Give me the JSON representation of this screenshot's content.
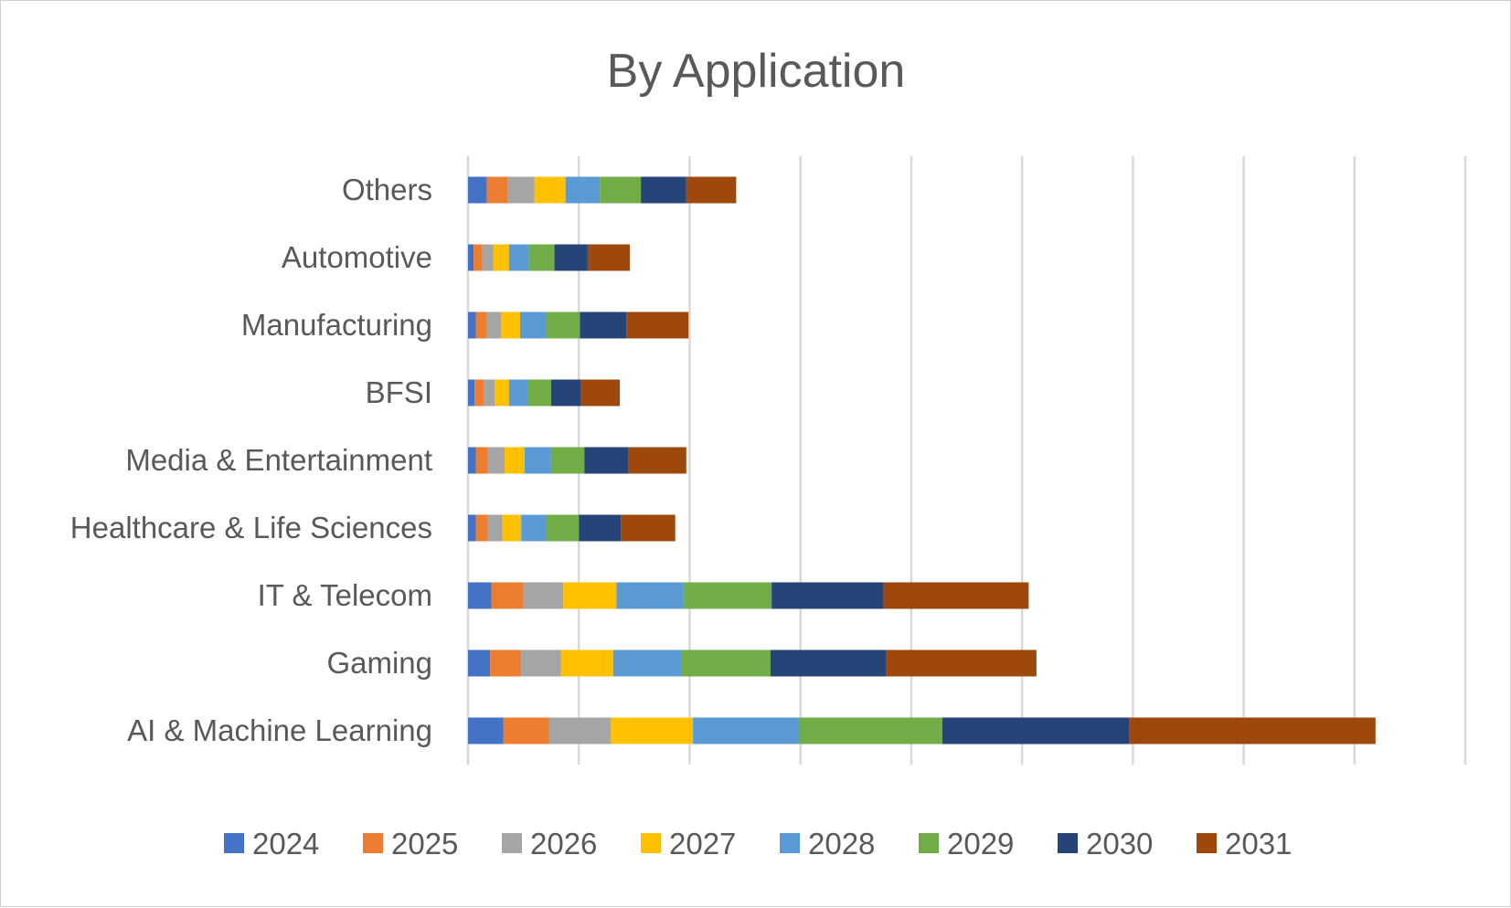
{
  "chart_data": {
    "type": "bar",
    "orientation": "horizontal",
    "stacked": true,
    "title": "By Application",
    "xlabel": "",
    "ylabel": "",
    "categories": [
      "AI & Machine Learning",
      "Gaming",
      "IT & Telecom",
      "Healthcare & Life Sciences",
      "Media & Entertainment",
      "BFSI",
      "Manufacturing",
      "Automotive",
      "Others"
    ],
    "series": [
      {
        "name": "2024",
        "color": "#4472C4",
        "values": [
          0.32,
          0.2,
          0.21,
          0.07,
          0.07,
          0.06,
          0.07,
          0.05,
          0.17
        ]
      },
      {
        "name": "2025",
        "color": "#ED7D31",
        "values": [
          0.41,
          0.28,
          0.29,
          0.11,
          0.11,
          0.08,
          0.1,
          0.08,
          0.19
        ]
      },
      {
        "name": "2026",
        "color": "#A5A5A5",
        "values": [
          0.56,
          0.36,
          0.36,
          0.13,
          0.15,
          0.1,
          0.13,
          0.1,
          0.24
        ]
      },
      {
        "name": "2027",
        "color": "#FFC000",
        "values": [
          0.74,
          0.47,
          0.48,
          0.17,
          0.18,
          0.13,
          0.17,
          0.14,
          0.28
        ]
      },
      {
        "name": "2028",
        "color": "#5B9BD5",
        "values": [
          0.96,
          0.62,
          0.61,
          0.23,
          0.24,
          0.17,
          0.24,
          0.18,
          0.31
        ]
      },
      {
        "name": "2029",
        "color": "#70AD47",
        "values": [
          1.29,
          0.8,
          0.79,
          0.29,
          0.3,
          0.21,
          0.3,
          0.23,
          0.37
        ]
      },
      {
        "name": "2030",
        "color": "#264478",
        "values": [
          1.69,
          1.04,
          1.01,
          0.38,
          0.4,
          0.27,
          0.42,
          0.3,
          0.41
        ]
      },
      {
        "name": "2031",
        "color": "#9E480E",
        "values": [
          2.22,
          1.36,
          1.31,
          0.49,
          0.52,
          0.35,
          0.56,
          0.38,
          0.45
        ]
      }
    ],
    "xlim": [
      0,
      9
    ],
    "x_major_step": 1,
    "grid": true,
    "legend_position": "bottom"
  }
}
